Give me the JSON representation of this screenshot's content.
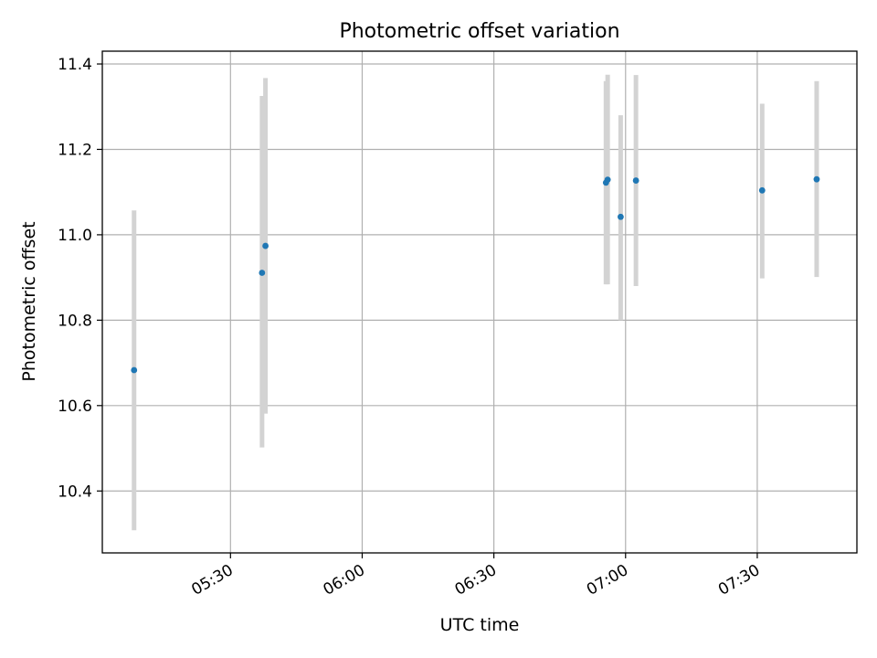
{
  "chart_data": {
    "type": "scatter",
    "title": "Photometric offset variation",
    "xlabel": "UTC time",
    "ylabel": "Photometric offset",
    "x_axis": {
      "kind": "time",
      "range": [
        "05:00:48",
        "07:52:42"
      ],
      "ticks": [
        "05:30",
        "06:00",
        "06:30",
        "07:00",
        "07:30"
      ]
    },
    "y_axis": {
      "range": [
        10.255,
        11.43
      ],
      "ticks": [
        "10.4",
        "10.6",
        "10.8",
        "11.0",
        "11.2",
        "11.4"
      ]
    },
    "grid": true,
    "colors": {
      "point": "#1f77b4",
      "errorbar": "#d3d3d3",
      "grid": "#b0b0b0"
    },
    "points": [
      {
        "x": "05:08:02",
        "y": 10.683,
        "ylow": 10.308,
        "yhigh": 11.057
      },
      {
        "x": "05:37:11",
        "y": 10.911,
        "ylow": 10.502,
        "yhigh": 11.325
      },
      {
        "x": "05:37:58",
        "y": 10.974,
        "ylow": 10.581,
        "yhigh": 11.367
      },
      {
        "x": "06:55:32",
        "y": 11.122,
        "ylow": 10.884,
        "yhigh": 11.36
      },
      {
        "x": "06:55:55",
        "y": 11.129,
        "ylow": 10.884,
        "yhigh": 11.375
      },
      {
        "x": "06:58:53",
        "y": 11.042,
        "ylow": 10.8,
        "yhigh": 11.28
      },
      {
        "x": "07:02:22",
        "y": 11.127,
        "ylow": 10.88,
        "yhigh": 11.374
      },
      {
        "x": "07:31:07",
        "y": 11.104,
        "ylow": 10.898,
        "yhigh": 11.307
      },
      {
        "x": "07:43:32",
        "y": 11.13,
        "ylow": 10.901,
        "yhigh": 11.36
      }
    ]
  }
}
